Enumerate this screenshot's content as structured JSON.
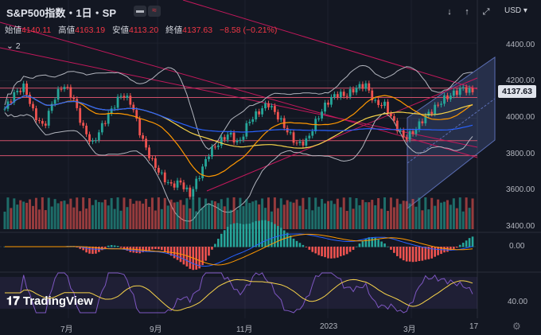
{
  "header": {
    "title": "S&P500指数・1日・SP",
    "currency": "USD",
    "indicator_count": "2"
  },
  "ohlc": {
    "open_label": "始値",
    "open": "4140.11",
    "high_label": "高値",
    "high": "4163.19",
    "low_label": "安値",
    "low": "4113.20",
    "close_label": "終値",
    "close": "4137.63",
    "change": "−8.58 (−0.21%)"
  },
  "price_badge": "4137.63",
  "y_ticks": [
    "4400.00",
    "4200.00",
    "4000.00",
    "3800.00",
    "3600.00",
    "3400.00"
  ],
  "macd_tick": "0.00",
  "rsi_tick": "40.00",
  "x_ticks": [
    "7月",
    "9月",
    "11月",
    "2023",
    "3月",
    "17"
  ],
  "logo": "TradingView",
  "colors": {
    "background": "#131722",
    "up": "#26a69a",
    "down": "#ef5350",
    "grid": "#2a2e39"
  },
  "chart_data": {
    "type": "candlestick",
    "title": "S&P500指数・1日・SP",
    "x_ticks": [
      "7月",
      "9月",
      "11月",
      "2023",
      "3月",
      "17"
    ],
    "y_ticks": [
      4400,
      4200,
      4000,
      3800,
      3600,
      3400
    ],
    "ylim": [
      3400,
      4460
    ],
    "close_series_approx": [
      4050,
      4130,
      4170,
      4020,
      3950,
      4100,
      4180,
      4110,
      3950,
      3860,
      3960,
      4050,
      4130,
      4080,
      3900,
      3780,
      3700,
      3640,
      3660,
      3590,
      3700,
      3820,
      3870,
      3920,
      3860,
      3980,
      4030,
      4080,
      4010,
      3930,
      3860,
      3880,
      3990,
      4080,
      4130,
      4120,
      4160,
      4180,
      4080,
      4070,
      3970,
      3890,
      3930,
      4000,
      4050,
      4100,
      4130,
      4160,
      4137
    ]
  }
}
